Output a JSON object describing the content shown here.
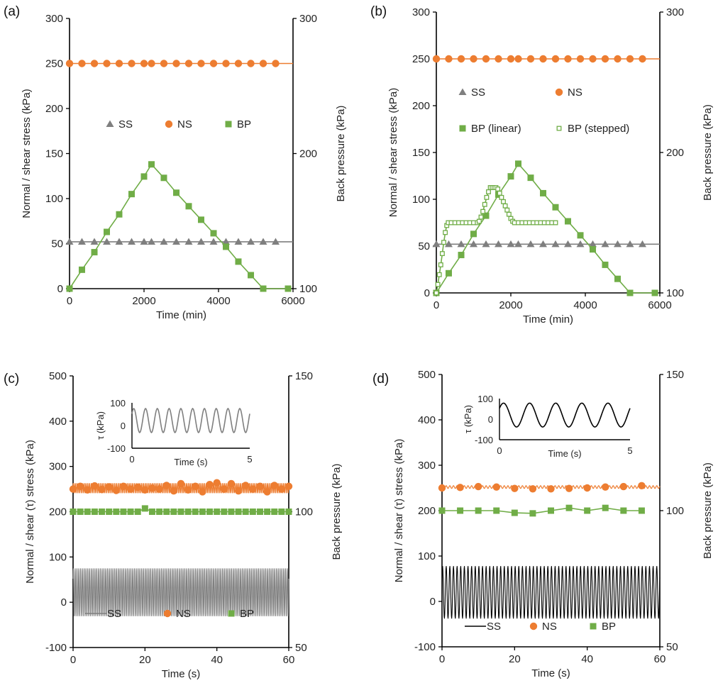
{
  "colors": {
    "SS_gray": "#7f7f7f",
    "NS": "#ed7d31",
    "BP": "#70ad47",
    "SS_black": "#000000",
    "axis": "#000000"
  },
  "chart_data": [
    {
      "panel": "(a)",
      "type": "line",
      "xlabel": "Time (min)",
      "ylabel": "Normal / shear stress (kPa)",
      "y2label": "Back pressure (kPa)",
      "xlim": [
        0,
        6000
      ],
      "ylim": [
        0,
        300
      ],
      "y2lim": [
        100,
        300
      ],
      "xticks": [
        "0",
        "2000",
        "4000",
        "6000"
      ],
      "yticks": [
        "0",
        "50",
        "100",
        "150",
        "200",
        "250",
        "300"
      ],
      "y2ticks": [
        "100",
        "200",
        "300"
      ],
      "grid": false,
      "legend": "center",
      "legend_entries": [
        "SS",
        "NS",
        "BP"
      ],
      "series": [
        {
          "name": "SS",
          "axis": "left",
          "marker": "triangle",
          "color": "#7f7f7f",
          "line_to": 6000,
          "x": [
            0,
            333,
            667,
            1000,
            1333,
            1667,
            2000,
            2200,
            2533,
            2867,
            3200,
            3533,
            3867,
            4200,
            4533,
            4867,
            5200,
            5533
          ],
          "y": [
            52,
            52,
            52,
            52,
            52,
            52,
            52,
            52,
            52,
            52,
            52,
            52,
            52,
            52,
            52,
            52,
            52,
            52
          ]
        },
        {
          "name": "NS",
          "axis": "left",
          "marker": "circle",
          "color": "#ed7d31",
          "line_to": 6000,
          "x": [
            0,
            333,
            667,
            1000,
            1333,
            1667,
            2000,
            2200,
            2533,
            2867,
            3200,
            3533,
            3867,
            4200,
            4533,
            4867,
            5200,
            5533
          ],
          "y": [
            250,
            250,
            250,
            250,
            250,
            250,
            250,
            250,
            250,
            250,
            250,
            250,
            250,
            250,
            250,
            250,
            250,
            250
          ]
        },
        {
          "name": "BP",
          "axis": "right",
          "marker": "square",
          "color": "#70ad47",
          "x": [
            0,
            333,
            667,
            1000,
            1333,
            1667,
            2000,
            2200,
            2533,
            2867,
            3200,
            3533,
            3867,
            4200,
            4533,
            4867,
            5200,
            5867
          ],
          "y": [
            100,
            114,
            127,
            142,
            155,
            170,
            183,
            192,
            182,
            171,
            161,
            151,
            141,
            131,
            120,
            110,
            100,
            100
          ]
        }
      ]
    },
    {
      "panel": "(b)",
      "type": "line",
      "xlabel": "Time (min)",
      "ylabel": "Normal / shear stress (kPa)",
      "y2label": "Back pressure (kPa)",
      "xlim": [
        0,
        6000
      ],
      "ylim": [
        0,
        300
      ],
      "y2lim": [
        100,
        300
      ],
      "xticks": [
        "0",
        "2000",
        "4000",
        "6000"
      ],
      "yticks": [
        "0",
        "50",
        "100",
        "150",
        "200",
        "250",
        "300"
      ],
      "y2ticks": [
        "100",
        "200",
        "300"
      ],
      "grid": false,
      "legend": "upper-center",
      "legend_entries": [
        "SS",
        "NS",
        "BP (linear)",
        "BP (stepped)"
      ],
      "series": [
        {
          "name": "SS",
          "axis": "left",
          "marker": "triangle",
          "color": "#7f7f7f",
          "line_to": 6000,
          "x": [
            0,
            333,
            667,
            1000,
            1333,
            1667,
            2000,
            2200,
            2533,
            2867,
            3200,
            3533,
            3867,
            4200,
            4533,
            4867,
            5200,
            5533
          ],
          "y": [
            52,
            52,
            52,
            52,
            52,
            52,
            52,
            52,
            52,
            52,
            52,
            52,
            52,
            52,
            52,
            52,
            52,
            52
          ]
        },
        {
          "name": "NS",
          "axis": "left",
          "marker": "circle",
          "color": "#ed7d31",
          "line_to": 6000,
          "x": [
            0,
            333,
            667,
            1000,
            1333,
            1667,
            2000,
            2200,
            2533,
            2867,
            3200,
            3533,
            3867,
            4200,
            4533,
            4867,
            5200,
            5533
          ],
          "y": [
            250,
            250,
            250,
            250,
            250,
            250,
            250,
            250,
            250,
            250,
            250,
            250,
            250,
            250,
            250,
            250,
            250,
            250
          ]
        },
        {
          "name": "BP (linear)",
          "axis": "right",
          "marker": "square",
          "color": "#70ad47",
          "x": [
            0,
            333,
            667,
            1000,
            1333,
            1667,
            2000,
            2200,
            2533,
            2867,
            3200,
            3533,
            3867,
            4200,
            4533,
            4867,
            5200,
            5867
          ],
          "y": [
            100,
            114,
            127,
            142,
            155,
            170,
            183,
            192,
            182,
            171,
            161,
            151,
            141,
            131,
            120,
            110,
            100,
            100
          ]
        },
        {
          "name": "BP (stepped)",
          "axis": "right",
          "marker": "open-square",
          "color": "#70ad47",
          "x": [
            0,
            40,
            80,
            120,
            160,
            200,
            240,
            280,
            320,
            400,
            500,
            600,
            700,
            800,
            900,
            1000,
            1100,
            1150,
            1200,
            1250,
            1300,
            1350,
            1400,
            1450,
            1500,
            1550,
            1600,
            1650,
            1700,
            1750,
            1800,
            1850,
            1900,
            1950,
            2000,
            2050,
            2100,
            2200,
            2300,
            2400,
            2500,
            2600,
            2700,
            2800,
            2900,
            3000,
            3100,
            3200
          ],
          "y": [
            100,
            106,
            113,
            120,
            128,
            136,
            143,
            148,
            150,
            150,
            150,
            150,
            150,
            150,
            150,
            150,
            150,
            151,
            154,
            158,
            163,
            168,
            172,
            175,
            175,
            175,
            175,
            174,
            171,
            168,
            165,
            162,
            159,
            156,
            153,
            151,
            150,
            150,
            150,
            150,
            150,
            150,
            150,
            150,
            150,
            150,
            150,
            150
          ]
        }
      ]
    },
    {
      "panel": "(c)",
      "type": "line",
      "xlabel": "Time (s)",
      "ylabel": "Normal / shear (τ) stress (kPa)",
      "y2label": "Back pressure (kPa)",
      "xlim": [
        0,
        60
      ],
      "ylim": [
        -100,
        500
      ],
      "y2lim": [
        50,
        150
      ],
      "xticks": [
        "0",
        "20",
        "40",
        "60"
      ],
      "yticks": [
        "-100",
        "0",
        "100",
        "200",
        "300",
        "400",
        "500"
      ],
      "y2ticks": [
        "50",
        "100",
        "150"
      ],
      "grid": false,
      "legend": "bottom",
      "legend_entries": [
        "SS",
        "NS",
        "BP"
      ],
      "series": [
        {
          "name": "SS",
          "axis": "left",
          "marker": "none",
          "color": "#7f7f7f",
          "function": "sine",
          "mean": 22,
          "amplitude": 53,
          "frequency_hz": 2
        },
        {
          "name": "NS",
          "axis": "left",
          "marker": "circle",
          "color": "#ed7d31",
          "function": "sine",
          "mean": 252,
          "amplitude": 11,
          "frequency_hz": 2,
          "x": [
            0,
            2,
            4,
            6,
            8,
            10,
            12,
            14,
            16,
            18,
            20,
            22,
            24,
            26,
            28,
            30,
            32,
            34,
            36,
            38,
            40,
            42,
            44,
            46,
            48,
            50,
            52,
            54,
            56,
            58,
            60
          ],
          "y": [
            250,
            256,
            248,
            257,
            249,
            255,
            247,
            256,
            250,
            254,
            248,
            252,
            250,
            258,
            246,
            262,
            248,
            256,
            244,
            260,
            264,
            250,
            262,
            246,
            258,
            250,
            256,
            244,
            258,
            250,
            256
          ]
        },
        {
          "name": "BP",
          "axis": "right",
          "marker": "square",
          "color": "#70ad47",
          "x": [
            0,
            2,
            4,
            6,
            8,
            10,
            12,
            14,
            16,
            18,
            20,
            22,
            24,
            26,
            28,
            30,
            32,
            34,
            36,
            38,
            40,
            42,
            44,
            46,
            48,
            50,
            52,
            54,
            56,
            58,
            60
          ],
          "y": [
            100,
            100,
            100,
            100,
            100,
            100,
            100,
            100,
            100,
            100,
            101.2,
            100,
            100,
            100,
            100,
            100,
            100,
            100,
            100,
            100,
            100,
            100,
            100,
            100,
            100,
            100,
            100,
            100,
            100,
            100,
            100
          ]
        }
      ],
      "inset": {
        "xlabel": "Time (s)",
        "ylabel": "τ (kPa)",
        "xlim": [
          0,
          5
        ],
        "ylim": [
          -100,
          100
        ],
        "xticks": [
          "0",
          "5"
        ],
        "yticks": [
          "-100",
          "0",
          "100"
        ],
        "series": {
          "name": "SS",
          "color": "#7f7f7f",
          "function": "sine",
          "mean": 22,
          "amplitude": 53,
          "frequency_hz": 2
        }
      }
    },
    {
      "panel": "(d)",
      "type": "line",
      "xlabel": "Time (s)",
      "ylabel": "Normal / shear (τ) stress (kPa)",
      "y2label": "Back pressure (kPa)",
      "xlim": [
        0,
        60
      ],
      "ylim": [
        -100,
        500
      ],
      "y2lim": [
        50,
        150
      ],
      "xticks": [
        "0",
        "20",
        "40",
        "60"
      ],
      "yticks": [
        "-100",
        "0",
        "100",
        "200",
        "300",
        "400",
        "500"
      ],
      "y2ticks": [
        "50",
        "100",
        "150"
      ],
      "grid": false,
      "legend": "bottom",
      "legend_entries": [
        "SS",
        "NS",
        "BP"
      ],
      "series": [
        {
          "name": "SS",
          "axis": "left",
          "marker": "none",
          "color": "#000000",
          "function": "sine",
          "mean": 20,
          "amplitude": 58,
          "frequency_hz": 1
        },
        {
          "name": "NS",
          "axis": "left",
          "marker": "circle",
          "color": "#ed7d31",
          "function": "sine",
          "mean": 252,
          "amplitude": 3,
          "frequency_hz": 1,
          "x": [
            0,
            5,
            10,
            15,
            20,
            25,
            30,
            35,
            40,
            45,
            50,
            55
          ],
          "y": [
            250,
            251,
            253,
            252,
            249,
            248,
            248,
            249,
            250,
            252,
            253,
            255
          ]
        },
        {
          "name": "BP",
          "axis": "right",
          "marker": "square",
          "color": "#70ad47",
          "x": [
            0,
            5,
            10,
            15,
            20,
            25,
            30,
            35,
            40,
            45,
            50,
            55
          ],
          "y": [
            100,
            100,
            100,
            100,
            99.2,
            99,
            100,
            101,
            100,
            101,
            100,
            100
          ]
        }
      ],
      "inset": {
        "xlabel": "Time (s)",
        "ylabel": "τ (kPa)",
        "xlim": [
          0,
          5
        ],
        "ylim": [
          -100,
          100
        ],
        "xticks": [
          "0",
          "5"
        ],
        "yticks": [
          "-100",
          "0",
          "100"
        ],
        "series": {
          "name": "SS",
          "color": "#000000",
          "function": "sine",
          "mean": 20,
          "amplitude": 58,
          "frequency_hz": 1
        }
      }
    }
  ]
}
